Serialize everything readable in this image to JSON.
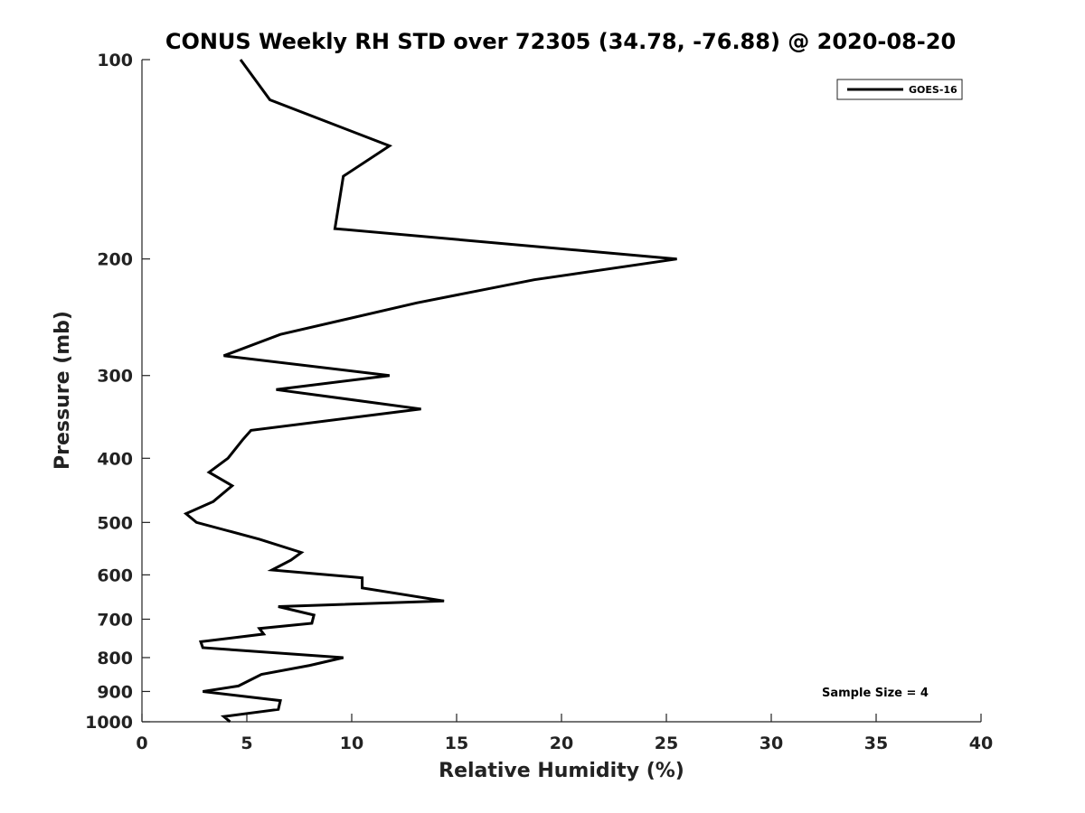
{
  "chart_data": {
    "type": "line",
    "title": "CONUS Weekly RH STD over 72305 (34.78, -76.88) @ 2020-08-20",
    "xlabel": "Relative Humidity (%)",
    "ylabel": "Pressure (mb)",
    "xlim": [
      0,
      40
    ],
    "ylim": [
      100,
      1000
    ],
    "y_scale": "log",
    "y_reversed": true,
    "x_ticks": [
      0,
      5,
      10,
      15,
      20,
      25,
      30,
      35,
      40
    ],
    "y_ticks": [
      100,
      200,
      300,
      400,
      500,
      600,
      700,
      800,
      900,
      1000
    ],
    "grid": false,
    "legend_placement": "top-right",
    "series": [
      {
        "name": "GOES-16",
        "color": "#000000",
        "points": [
          [
            4.7,
            100
          ],
          [
            6.1,
            115
          ],
          [
            11.8,
            135
          ],
          [
            9.6,
            150
          ],
          [
            9.2,
            180
          ],
          [
            25.5,
            200
          ],
          [
            18.7,
            215
          ],
          [
            13.1,
            233
          ],
          [
            6.6,
            260
          ],
          [
            3.9,
            280
          ],
          [
            11.8,
            300
          ],
          [
            6.4,
            315
          ],
          [
            13.3,
            337
          ],
          [
            5.2,
            363
          ],
          [
            4.8,
            375
          ],
          [
            4.1,
            400
          ],
          [
            3.2,
            420
          ],
          [
            4.3,
            440
          ],
          [
            3.4,
            465
          ],
          [
            2.1,
            485
          ],
          [
            2.6,
            500
          ],
          [
            5.6,
            530
          ],
          [
            7.6,
            555
          ],
          [
            7.1,
            570
          ],
          [
            6.2,
            590
          ],
          [
            10.5,
            606
          ],
          [
            10.5,
            628
          ],
          [
            14.4,
            657
          ],
          [
            6.5,
            670
          ],
          [
            8.2,
            690
          ],
          [
            8.1,
            710
          ],
          [
            5.6,
            723
          ],
          [
            5.8,
            737
          ],
          [
            2.8,
            757
          ],
          [
            2.9,
            773
          ],
          [
            9.6,
            800
          ],
          [
            8.0,
            822
          ],
          [
            5.7,
            848
          ],
          [
            4.6,
            883
          ],
          [
            2.9,
            900
          ],
          [
            6.6,
            929
          ],
          [
            6.5,
            958
          ],
          [
            3.9,
            982
          ],
          [
            4.2,
            1000
          ]
        ]
      }
    ],
    "annotation": "Sample Size = 4"
  }
}
